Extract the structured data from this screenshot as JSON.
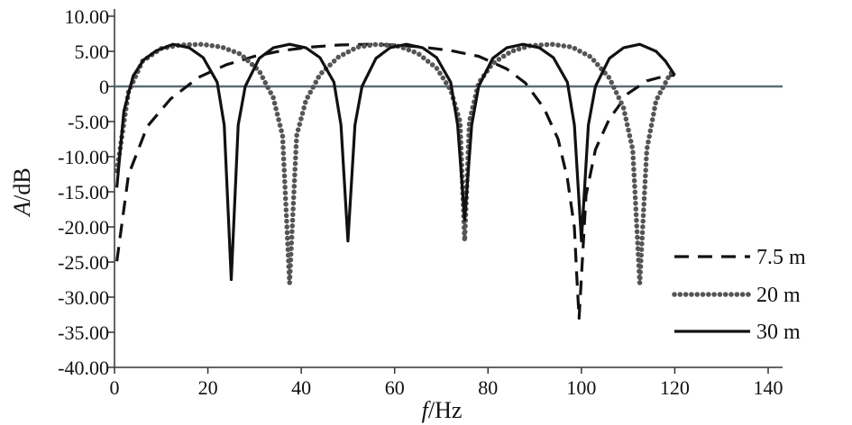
{
  "chart_data": {
    "type": "line",
    "title": "",
    "xlabel_italic": "f",
    "xlabel_unit": "/Hz",
    "ylabel_italic": "A",
    "ylabel_unit": "/dB",
    "xlim": [
      0,
      140
    ],
    "ylim": [
      -40,
      10
    ],
    "x_ticks": [
      0,
      20,
      40,
      60,
      80,
      100,
      120,
      140
    ],
    "x_tick_labels": [
      "0",
      "20",
      "40",
      "60",
      "80",
      "100",
      "120",
      "140"
    ],
    "y_ticks": [
      10,
      5,
      0,
      -5,
      -10,
      -15,
      -20,
      -25,
      -30,
      -35,
      -40
    ],
    "y_tick_labels": [
      "10.00",
      "5.00",
      "0",
      "-5.00",
      "-10.00",
      "-15.00",
      "-20.00",
      "-25.00",
      "-30.00",
      "-35.00",
      "-40.00"
    ],
    "reference_line_y": 0,
    "grid": false,
    "legend_position": "right",
    "series": [
      {
        "name": "7.5 m",
        "style": "dashed",
        "x": [
          0.5,
          3,
          7,
          12,
          18,
          24,
          30,
          36,
          42,
          48,
          54,
          60,
          66,
          72,
          78,
          84,
          88,
          92,
          95,
          97,
          98.5,
          99,
          99.5,
          101,
          103,
          106,
          110,
          114,
          118,
          120
        ],
        "y": [
          -24.9,
          -12.6,
          -5.7,
          -1.8,
          1.3,
          3.1,
          4.3,
          5.1,
          5.6,
          5.9,
          6.0,
          5.9,
          5.6,
          5.1,
          4.3,
          2.5,
          0.5,
          -3.1,
          -7.5,
          -13.1,
          -20.1,
          -26.9,
          -33.0,
          -15.5,
          -9.0,
          -4.6,
          -1.0,
          0.8,
          1.5,
          1.6
        ]
      },
      {
        "name": "20 m",
        "style": "dotted",
        "x": [
          0.5,
          3,
          6,
          10,
          14,
          18.75,
          23,
          27,
          31,
          34,
          36,
          37.5,
          39,
          41,
          44,
          48,
          52,
          56.25,
          61,
          65,
          69,
          72,
          74,
          75,
          76,
          78,
          81,
          85,
          89,
          93.75,
          98,
          102,
          106,
          109,
          111,
          112.5,
          114,
          116,
          119,
          120
        ],
        "y": [
          -12.0,
          -0.8,
          3.6,
          5.4,
          5.9,
          6.0,
          5.6,
          4.6,
          2.2,
          -1.6,
          -7.0,
          -28.0,
          -7.0,
          -2.0,
          1.7,
          4.2,
          5.6,
          6.0,
          5.7,
          4.7,
          2.6,
          -0.5,
          -5.0,
          -22.0,
          -5.0,
          0.5,
          3.3,
          5.0,
          5.8,
          6.0,
          5.6,
          4.2,
          1.2,
          -3.0,
          -9.0,
          -28.0,
          -9.0,
          -2.0,
          1.8,
          2.3
        ]
      },
      {
        "name": "30 m",
        "style": "solid",
        "x": [
          0.5,
          2,
          4,
          6.25,
          9,
          12.5,
          16,
          19,
          22,
          23.5,
          25,
          26.5,
          28,
          31,
          34,
          37.5,
          41,
          44,
          47,
          48.5,
          50,
          51.5,
          53,
          56,
          59,
          62.5,
          66,
          69,
          72,
          73.5,
          75,
          76.5,
          78,
          81,
          84,
          87.5,
          91,
          94,
          97,
          98.5,
          100,
          101.5,
          103,
          106,
          109,
          112.5,
          116,
          118,
          120
        ],
        "y": [
          -14.4,
          -3.5,
          1.5,
          3.8,
          5.1,
          6.0,
          5.5,
          4.1,
          0.6,
          -5.5,
          -27.5,
          -5.5,
          0.0,
          4.0,
          5.5,
          6.0,
          5.5,
          4.1,
          0.6,
          -5.5,
          -22.0,
          -5.5,
          0.0,
          4.0,
          5.5,
          6.0,
          5.5,
          4.1,
          0.6,
          -5.5,
          -19.0,
          -5.5,
          0.0,
          4.0,
          5.5,
          6.0,
          5.5,
          4.1,
          0.6,
          -5.5,
          -22.0,
          -5.5,
          0.0,
          4.0,
          5.5,
          6.0,
          5.0,
          3.6,
          1.6
        ]
      }
    ]
  }
}
